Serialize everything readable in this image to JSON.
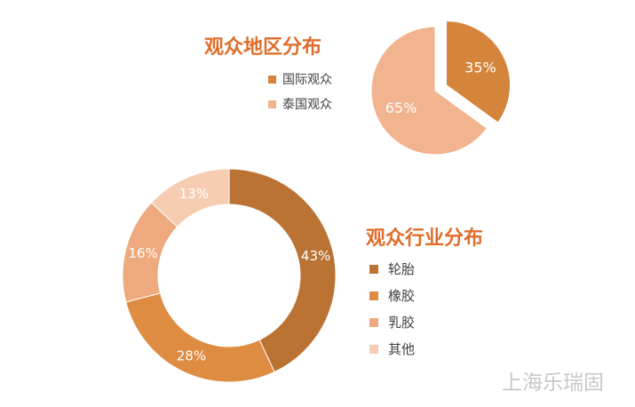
{
  "chart_data": [
    {
      "type": "pie",
      "title": "观众地区分布",
      "categories": [
        "国际观众",
        "泰国观众"
      ],
      "values": [
        35,
        65
      ],
      "labels": [
        "35%",
        "65%"
      ],
      "colors": [
        "#d5843c",
        "#f2b48e"
      ],
      "exploded": "国际观众",
      "legend": "left"
    },
    {
      "type": "pie",
      "subtype": "donut",
      "title": "观众行业分布",
      "categories": [
        "轮胎",
        "橡胶",
        "乳胶",
        "其他"
      ],
      "values": [
        43,
        28,
        16,
        13
      ],
      "labels": [
        "43%",
        "28%",
        "16%",
        "13%"
      ],
      "colors": [
        "#bb7334",
        "#df8c43",
        "#eeaa7e",
        "#f6cdb3"
      ],
      "legend": "right"
    }
  ],
  "watermark": "上海乐瑞固"
}
